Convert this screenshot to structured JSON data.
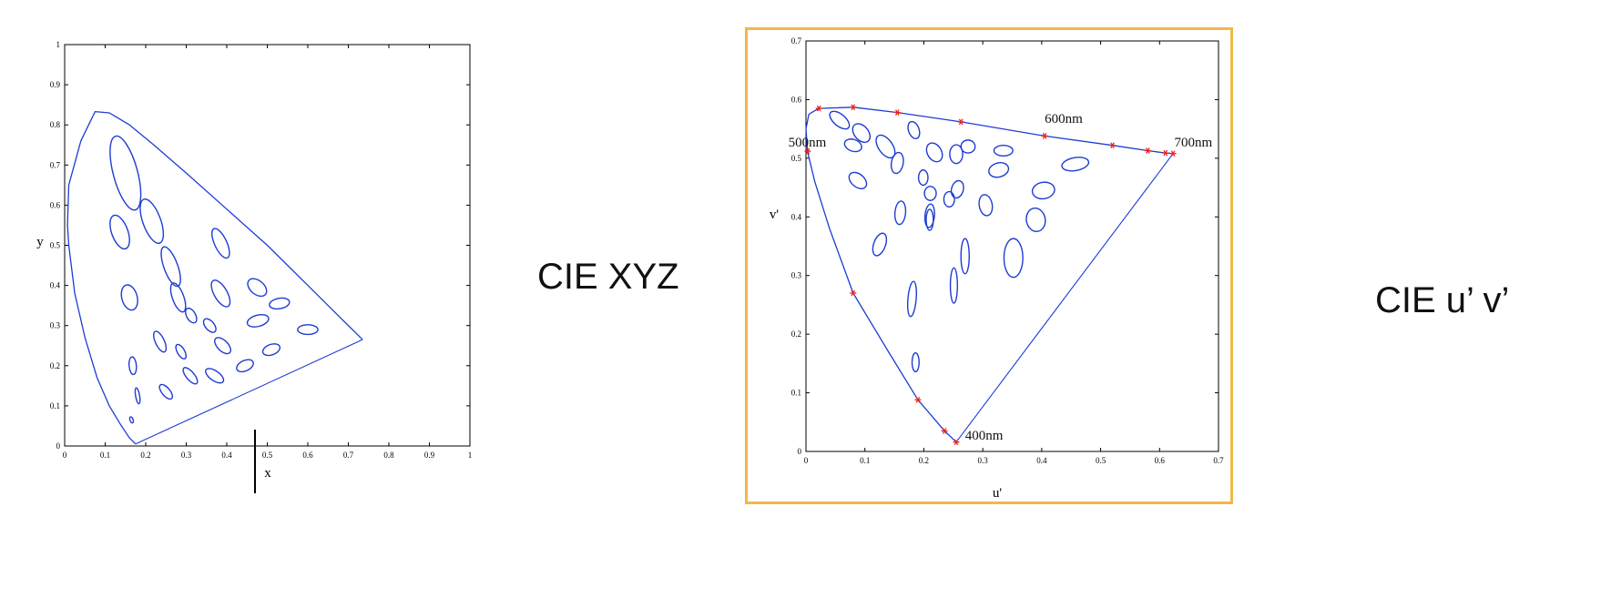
{
  "labels": {
    "left": "CIE XYZ",
    "right": "CIE u’ v’"
  },
  "colors": {
    "curve": "#1e3cd4",
    "marker": "#e8231e",
    "frame": "#f0b849",
    "axis": "#000000"
  },
  "chart_data": [
    {
      "type": "scatter",
      "xlabel": "x",
      "ylabel": "y",
      "xlim": [
        0,
        1
      ],
      "ylim": [
        0,
        1
      ],
      "xticks": [
        "0",
        "0.1",
        "0.2",
        "0.3",
        "0.4",
        "0.5",
        "0.6",
        "0.7",
        "0.8",
        "0.9",
        "1"
      ],
      "yticks": [
        "0",
        "0.1",
        "0.2",
        "0.3",
        "0.4",
        "0.5",
        "0.6",
        "0.7",
        "0.8",
        "0.9",
        "1"
      ],
      "grid": false,
      "spectral_locus": [
        [
          0.175,
          0.005
        ],
        [
          0.16,
          0.02
        ],
        [
          0.14,
          0.05
        ],
        [
          0.11,
          0.1
        ],
        [
          0.08,
          0.17
        ],
        [
          0.05,
          0.27
        ],
        [
          0.025,
          0.38
        ],
        [
          0.01,
          0.5
        ],
        [
          0.007,
          0.55
        ],
        [
          0.01,
          0.65
        ],
        [
          0.04,
          0.76
        ],
        [
          0.075,
          0.833
        ],
        [
          0.11,
          0.83
        ],
        [
          0.16,
          0.8
        ],
        [
          0.22,
          0.75
        ],
        [
          0.3,
          0.68
        ],
        [
          0.4,
          0.59
        ],
        [
          0.5,
          0.5
        ],
        [
          0.6,
          0.4
        ],
        [
          0.68,
          0.32
        ],
        [
          0.735,
          0.265
        ]
      ],
      "purple_line": [
        [
          0.735,
          0.265
        ],
        [
          0.175,
          0.005
        ]
      ],
      "ellipses": [
        {
          "cx": 0.15,
          "cy": 0.68,
          "rx": 0.03,
          "ry": 0.095,
          "angle": 15
        },
        {
          "cx": 0.215,
          "cy": 0.56,
          "rx": 0.022,
          "ry": 0.058,
          "angle": 20
        },
        {
          "cx": 0.136,
          "cy": 0.533,
          "rx": 0.02,
          "ry": 0.044,
          "angle": 20
        },
        {
          "cx": 0.262,
          "cy": 0.447,
          "rx": 0.017,
          "ry": 0.052,
          "angle": 20
        },
        {
          "cx": 0.385,
          "cy": 0.505,
          "rx": 0.015,
          "ry": 0.04,
          "angle": 25
        },
        {
          "cx": 0.16,
          "cy": 0.37,
          "rx": 0.019,
          "ry": 0.032,
          "angle": 15
        },
        {
          "cx": 0.28,
          "cy": 0.37,
          "rx": 0.014,
          "ry": 0.038,
          "angle": 20
        },
        {
          "cx": 0.385,
          "cy": 0.38,
          "rx": 0.016,
          "ry": 0.037,
          "angle": 30
        },
        {
          "cx": 0.475,
          "cy": 0.395,
          "rx": 0.017,
          "ry": 0.027,
          "angle": 50
        },
        {
          "cx": 0.53,
          "cy": 0.355,
          "rx": 0.025,
          "ry": 0.013,
          "angle": 10
        },
        {
          "cx": 0.312,
          "cy": 0.325,
          "rx": 0.011,
          "ry": 0.02,
          "angle": 30
        },
        {
          "cx": 0.358,
          "cy": 0.3,
          "rx": 0.011,
          "ry": 0.02,
          "angle": 40
        },
        {
          "cx": 0.477,
          "cy": 0.312,
          "rx": 0.027,
          "ry": 0.014,
          "angle": 15
        },
        {
          "cx": 0.6,
          "cy": 0.29,
          "rx": 0.025,
          "ry": 0.012,
          "angle": 0
        },
        {
          "cx": 0.235,
          "cy": 0.26,
          "rx": 0.011,
          "ry": 0.028,
          "angle": 25
        },
        {
          "cx": 0.287,
          "cy": 0.235,
          "rx": 0.009,
          "ry": 0.02,
          "angle": 30
        },
        {
          "cx": 0.39,
          "cy": 0.25,
          "rx": 0.013,
          "ry": 0.025,
          "angle": 45
        },
        {
          "cx": 0.51,
          "cy": 0.24,
          "rx": 0.022,
          "ry": 0.013,
          "angle": 20
        },
        {
          "cx": 0.168,
          "cy": 0.2,
          "rx": 0.009,
          "ry": 0.022,
          "angle": 5
        },
        {
          "cx": 0.31,
          "cy": 0.175,
          "rx": 0.01,
          "ry": 0.025,
          "angle": 40
        },
        {
          "cx": 0.37,
          "cy": 0.175,
          "rx": 0.012,
          "ry": 0.026,
          "angle": 55
        },
        {
          "cx": 0.445,
          "cy": 0.2,
          "rx": 0.022,
          "ry": 0.013,
          "angle": 25
        },
        {
          "cx": 0.18,
          "cy": 0.125,
          "rx": 0.005,
          "ry": 0.02,
          "angle": 10
        },
        {
          "cx": 0.25,
          "cy": 0.135,
          "rx": 0.01,
          "ry": 0.022,
          "angle": 40
        },
        {
          "cx": 0.165,
          "cy": 0.065,
          "rx": 0.004,
          "ry": 0.008,
          "angle": 20
        }
      ]
    },
    {
      "type": "scatter",
      "xlabel": "u'",
      "ylabel": "v'",
      "xlim": [
        0,
        0.7
      ],
      "ylim": [
        0,
        0.7
      ],
      "xticks": [
        "0",
        "0.1",
        "0.2",
        "0.3",
        "0.4",
        "0.5",
        "0.6",
        "0.7"
      ],
      "yticks": [
        "0",
        "0.1",
        "0.2",
        "0.3",
        "0.4",
        "0.5",
        "0.6",
        "0.7"
      ],
      "grid": false,
      "annotations": [
        {
          "text": "500nm",
          "x": -0.03,
          "y": 0.52
        },
        {
          "text": "600nm",
          "x": 0.405,
          "y": 0.56
        },
        {
          "text": "700nm",
          "x": 0.625,
          "y": 0.52
        },
        {
          "text": "400nm",
          "x": 0.27,
          "y": 0.02
        }
      ],
      "spectral_locus": [
        [
          0.255,
          0.016
        ],
        [
          0.235,
          0.035
        ],
        [
          0.19,
          0.088
        ],
        [
          0.14,
          0.17
        ],
        [
          0.08,
          0.27
        ],
        [
          0.04,
          0.38
        ],
        [
          0.015,
          0.46
        ],
        [
          0.003,
          0.51
        ],
        [
          0.0,
          0.55
        ],
        [
          0.005,
          0.575
        ],
        [
          0.022,
          0.585
        ],
        [
          0.08,
          0.587
        ],
        [
          0.155,
          0.578
        ],
        [
          0.263,
          0.562
        ],
        [
          0.405,
          0.538
        ],
        [
          0.52,
          0.522
        ],
        [
          0.58,
          0.513
        ],
        [
          0.61,
          0.509
        ],
        [
          0.623,
          0.508
        ]
      ],
      "purple_line": [
        [
          0.623,
          0.508
        ],
        [
          0.255,
          0.016
        ]
      ],
      "wavelength_markers": [
        [
          0.255,
          0.016
        ],
        [
          0.235,
          0.035
        ],
        [
          0.19,
          0.088
        ],
        [
          0.08,
          0.27
        ],
        [
          0.003,
          0.512
        ],
        [
          0.022,
          0.585
        ],
        [
          0.08,
          0.587
        ],
        [
          0.155,
          0.578
        ],
        [
          0.263,
          0.562
        ],
        [
          0.405,
          0.538
        ],
        [
          0.52,
          0.522
        ],
        [
          0.58,
          0.513
        ],
        [
          0.61,
          0.509
        ],
        [
          0.623,
          0.508
        ]
      ],
      "ellipses": [
        {
          "cx": 0.057,
          "cy": 0.565,
          "rx": 0.02,
          "ry": 0.01,
          "angle": -40
        },
        {
          "cx": 0.094,
          "cy": 0.543,
          "rx": 0.018,
          "ry": 0.012,
          "angle": -50
        },
        {
          "cx": 0.135,
          "cy": 0.52,
          "rx": 0.022,
          "ry": 0.012,
          "angle": -55
        },
        {
          "cx": 0.183,
          "cy": 0.548,
          "rx": 0.015,
          "ry": 0.009,
          "angle": -70
        },
        {
          "cx": 0.08,
          "cy": 0.522,
          "rx": 0.015,
          "ry": 0.01,
          "angle": -20
        },
        {
          "cx": 0.218,
          "cy": 0.51,
          "rx": 0.017,
          "ry": 0.012,
          "angle": -60
        },
        {
          "cx": 0.275,
          "cy": 0.52,
          "rx": 0.012,
          "ry": 0.011,
          "angle": 0
        },
        {
          "cx": 0.255,
          "cy": 0.507,
          "rx": 0.011,
          "ry": 0.016,
          "angle": 0
        },
        {
          "cx": 0.335,
          "cy": 0.513,
          "rx": 0.016,
          "ry": 0.009,
          "angle": 0
        },
        {
          "cx": 0.155,
          "cy": 0.492,
          "rx": 0.01,
          "ry": 0.018,
          "angle": -10
        },
        {
          "cx": 0.327,
          "cy": 0.48,
          "rx": 0.017,
          "ry": 0.012,
          "angle": 15
        },
        {
          "cx": 0.457,
          "cy": 0.49,
          "rx": 0.023,
          "ry": 0.011,
          "angle": 10
        },
        {
          "cx": 0.088,
          "cy": 0.462,
          "rx": 0.017,
          "ry": 0.011,
          "angle": -40
        },
        {
          "cx": 0.199,
          "cy": 0.467,
          "rx": 0.008,
          "ry": 0.013,
          "angle": 0
        },
        {
          "cx": 0.211,
          "cy": 0.44,
          "rx": 0.01,
          "ry": 0.012,
          "angle": 0
        },
        {
          "cx": 0.257,
          "cy": 0.447,
          "rx": 0.01,
          "ry": 0.015,
          "angle": -15
        },
        {
          "cx": 0.21,
          "cy": 0.402,
          "rx": 0.008,
          "ry": 0.02,
          "angle": -5
        },
        {
          "cx": 0.243,
          "cy": 0.43,
          "rx": 0.009,
          "ry": 0.013,
          "angle": 0
        },
        {
          "cx": 0.16,
          "cy": 0.407,
          "rx": 0.009,
          "ry": 0.02,
          "angle": -5
        },
        {
          "cx": 0.21,
          "cy": 0.395,
          "rx": 0.006,
          "ry": 0.018,
          "angle": 0
        },
        {
          "cx": 0.305,
          "cy": 0.42,
          "rx": 0.011,
          "ry": 0.018,
          "angle": 10
        },
        {
          "cx": 0.403,
          "cy": 0.445,
          "rx": 0.019,
          "ry": 0.014,
          "angle": 10
        },
        {
          "cx": 0.39,
          "cy": 0.395,
          "rx": 0.016,
          "ry": 0.02,
          "angle": 10
        },
        {
          "cx": 0.125,
          "cy": 0.353,
          "rx": 0.01,
          "ry": 0.02,
          "angle": -20
        },
        {
          "cx": 0.27,
          "cy": 0.333,
          "rx": 0.007,
          "ry": 0.03,
          "angle": 0
        },
        {
          "cx": 0.352,
          "cy": 0.33,
          "rx": 0.016,
          "ry": 0.033,
          "angle": 0
        },
        {
          "cx": 0.18,
          "cy": 0.26,
          "rx": 0.007,
          "ry": 0.03,
          "angle": -5
        },
        {
          "cx": 0.251,
          "cy": 0.283,
          "rx": 0.006,
          "ry": 0.03,
          "angle": 0
        },
        {
          "cx": 0.186,
          "cy": 0.152,
          "rx": 0.006,
          "ry": 0.016,
          "angle": 0
        }
      ]
    }
  ]
}
